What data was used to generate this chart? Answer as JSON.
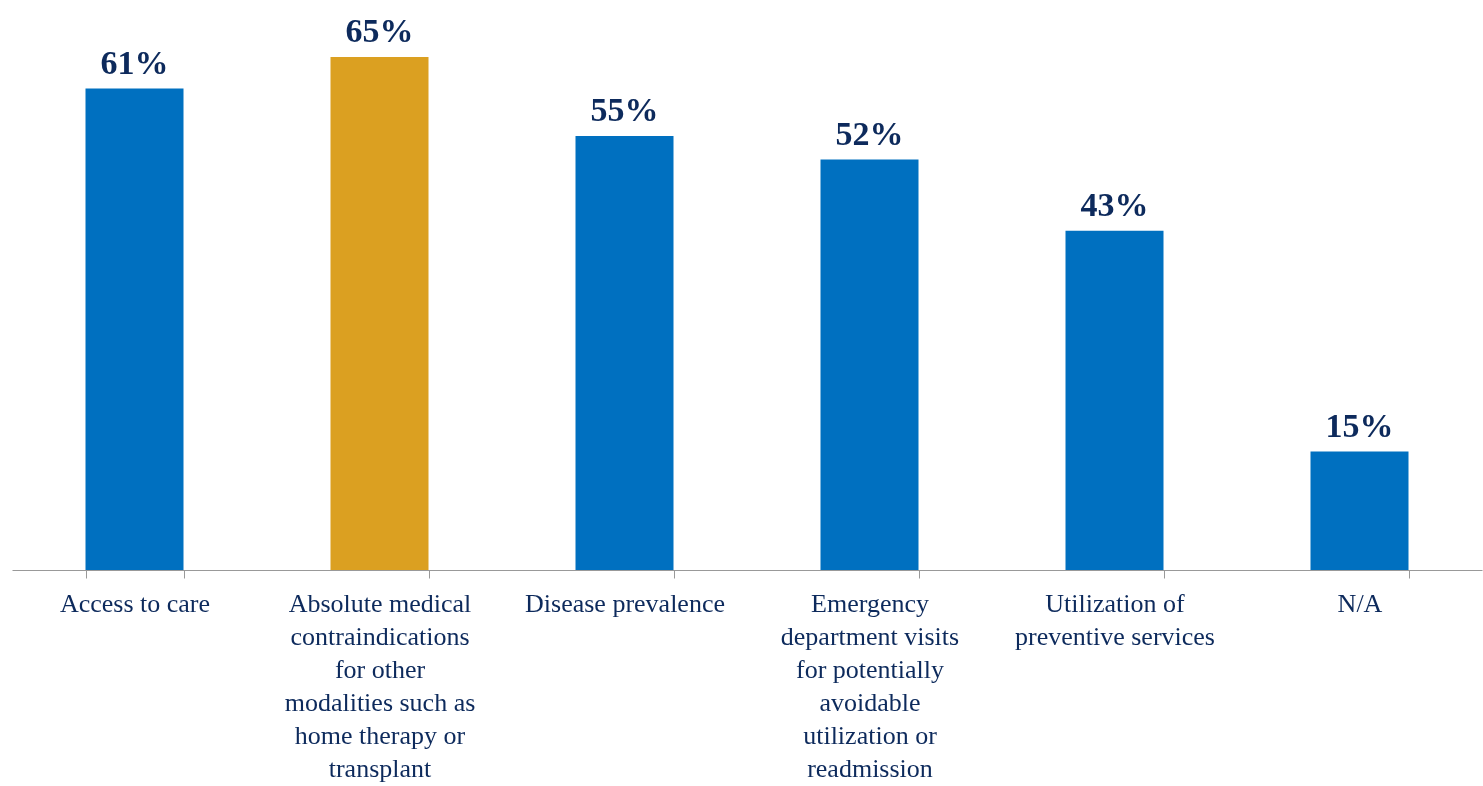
{
  "chart_data": {
    "type": "bar",
    "categories": [
      "Access to care",
      "Absolute medical contraindications for other modalities such as home therapy or transplant",
      "Disease prevalence",
      "Emergency department visits for potentially avoidable utilization or readmission",
      "Utilization of preventive services",
      "N/A"
    ],
    "values": [
      61,
      65,
      55,
      52,
      43,
      15
    ],
    "value_labels": [
      "61%",
      "65%",
      "55%",
      "52%",
      "43%",
      "15%"
    ],
    "colors": [
      "#0070c0",
      "#dba021",
      "#0070c0",
      "#0070c0",
      "#0070c0",
      "#0070c0"
    ],
    "grid": false
  }
}
